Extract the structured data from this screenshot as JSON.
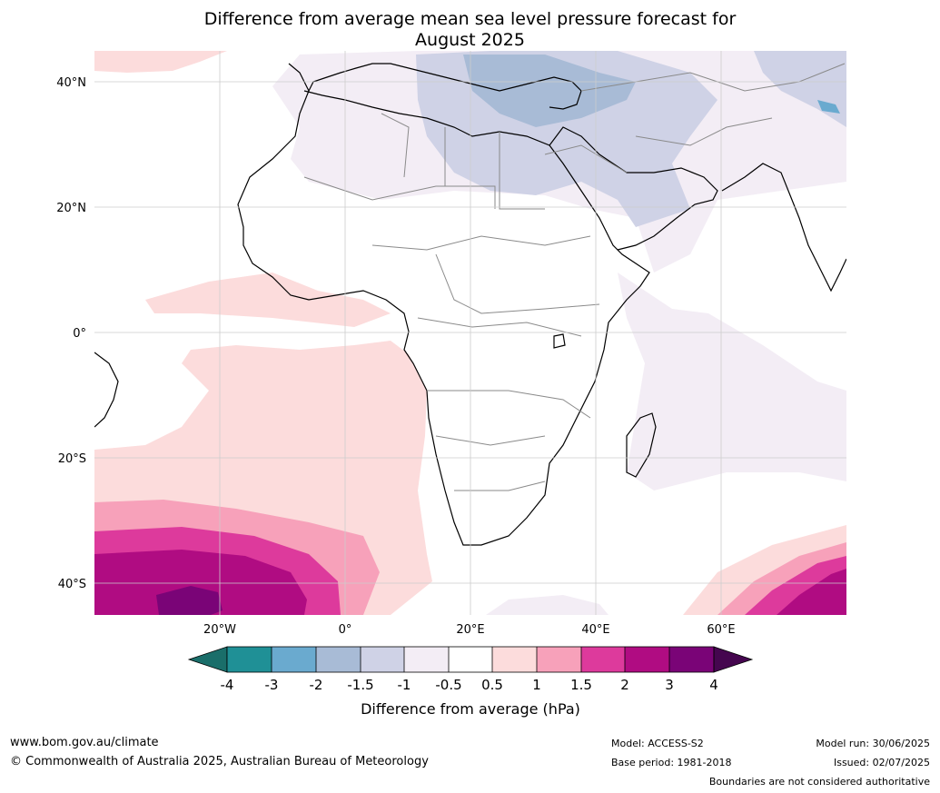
{
  "title_line1": "Difference from average mean sea level pressure forecast for",
  "title_line2": "August 2025",
  "map": {
    "lat_labels": [
      "40°N",
      "20°N",
      "0°",
      "20°S",
      "40°S"
    ],
    "lon_labels": [
      "20°W",
      "0°",
      "20°E",
      "40°E",
      "60°E"
    ],
    "extent": {
      "lon": [
        -40,
        80
      ],
      "lat": [
        -45,
        45
      ]
    }
  },
  "colorbar": {
    "title": "Difference from average (hPa)",
    "ticks": [
      "-4",
      "-3",
      "-2",
      "-1.5",
      "-1",
      "-0.5",
      "0.5",
      "1",
      "1.5",
      "2",
      "3",
      "4"
    ],
    "colors": [
      "#1a6e6a",
      "#1f9096",
      "#6aaacf",
      "#a8bbd6",
      "#cfd2e6",
      "#f3edf5",
      "#ffffff",
      "#fcdcdc",
      "#f7a1ba",
      "#dd3a9c",
      "#b00c82",
      "#7a0477",
      "#45064f"
    ]
  },
  "footer": {
    "url": "www.bom.gov.au/climate",
    "copyright": "© Commonwealth of Australia 2025, Australian Bureau of Meteorology",
    "model": "Model: ACCESS-S2",
    "base_period": "Base period: 1981-2018",
    "model_run": "Model run: 30/06/2025",
    "issued": "Issued: 02/07/2025",
    "disclaimer": "Boundaries are not considered authoritative"
  }
}
